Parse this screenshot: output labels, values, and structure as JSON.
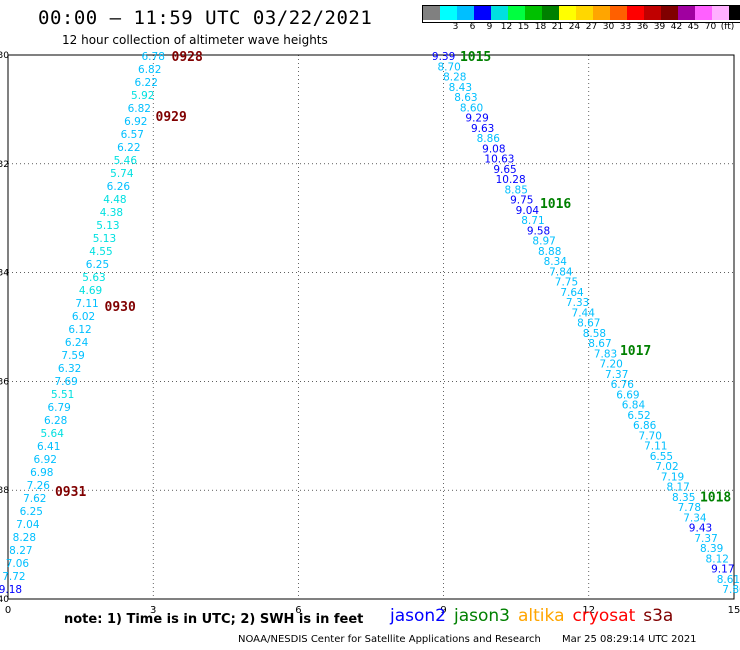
{
  "header": {
    "title": "00:00 – 11:59 UTC 03/22/2021",
    "subtitle": "12 hour collection of altimeter wave heights"
  },
  "color_scale": {
    "colors": [
      "#808080",
      "#00ffff",
      "#00bfff",
      "#0000ff",
      "#00e0e0",
      "#00ff40",
      "#00c000",
      "#008000",
      "#ffff00",
      "#ffd700",
      "#ffa500",
      "#ff6000",
      "#ff0000",
      "#c00000",
      "#800000",
      "#a000a0",
      "#ff60ff",
      "#ffb0ff",
      "#000000"
    ],
    "labels": [
      "",
      "3",
      "6",
      "9",
      "12",
      "15",
      "18",
      "21",
      "24",
      "27",
      "30",
      "33",
      "36",
      "39",
      "42",
      "45",
      "70",
      "(ft)",
      ""
    ]
  },
  "chart_data": {
    "type": "scatter",
    "xlim": [
      0,
      15
    ],
    "ylim": [
      -40,
      -30
    ],
    "x_ticks": [
      "0",
      "3",
      "6",
      "9",
      "12",
      "15"
    ],
    "y_ticks": [
      "-30",
      "-32",
      "-34",
      "-36",
      "-38",
      "-40"
    ],
    "grid": true,
    "tracks": [
      {
        "times": [
          {
            "label": "0928",
            "lat": -30.0
          },
          {
            "label": "0929",
            "lat": -31.1
          },
          {
            "label": "0930",
            "lat": -34.6
          },
          {
            "label": "0931",
            "lat": -38.0
          }
        ],
        "lon_start": 3.0,
        "lat_start": -30.0,
        "lon_end": 0.05,
        "lat_end": -39.8,
        "values": [
          {
            "v": "6.78",
            "c": "#00bfff"
          },
          {
            "v": "6.82",
            "c": "#00bfff"
          },
          {
            "v": "6.22",
            "c": "#00bfff"
          },
          {
            "v": "5.92",
            "c": "#00e0e0"
          },
          {
            "v": "6.82",
            "c": "#00bfff"
          },
          {
            "v": "6.92",
            "c": "#00bfff"
          },
          {
            "v": "6.57",
            "c": "#00bfff"
          },
          {
            "v": "6.22",
            "c": "#00bfff"
          },
          {
            "v": "5.46",
            "c": "#00e0e0"
          },
          {
            "v": "5.74",
            "c": "#00e0e0"
          },
          {
            "v": "6.26",
            "c": "#00bfff"
          },
          {
            "v": "4.48",
            "c": "#00e0e0"
          },
          {
            "v": "4.38",
            "c": "#00e0e0"
          },
          {
            "v": "5.13",
            "c": "#00e0e0"
          },
          {
            "v": "5.13",
            "c": "#00e0e0"
          },
          {
            "v": "4.55",
            "c": "#00e0e0"
          },
          {
            "v": "6.25",
            "c": "#00bfff"
          },
          {
            "v": "5.63",
            "c": "#00e0e0"
          },
          {
            "v": "4.69",
            "c": "#00e0e0"
          },
          {
            "v": "7.11",
            "c": "#00bfff"
          },
          {
            "v": "6.02",
            "c": "#00bfff"
          },
          {
            "v": "6.12",
            "c": "#00bfff"
          },
          {
            "v": "6.24",
            "c": "#00bfff"
          },
          {
            "v": "7.59",
            "c": "#00bfff"
          },
          {
            "v": "6.32",
            "c": "#00bfff"
          },
          {
            "v": "7.69",
            "c": "#00bfff"
          },
          {
            "v": "5.51",
            "c": "#00e0e0"
          },
          {
            "v": "6.79",
            "c": "#00bfff"
          },
          {
            "v": "6.28",
            "c": "#00bfff"
          },
          {
            "v": "5.64",
            "c": "#00e0e0"
          },
          {
            "v": "6.41",
            "c": "#00bfff"
          },
          {
            "v": "6.92",
            "c": "#00bfff"
          },
          {
            "v": "6.98",
            "c": "#00bfff"
          },
          {
            "v": "7.26",
            "c": "#00bfff"
          },
          {
            "v": "7.62",
            "c": "#00bfff"
          },
          {
            "v": "6.25",
            "c": "#00bfff"
          },
          {
            "v": "7.04",
            "c": "#00bfff"
          },
          {
            "v": "8.28",
            "c": "#00bfff"
          },
          {
            "v": "8.27",
            "c": "#00bfff"
          },
          {
            "v": "7.06",
            "c": "#00bfff"
          },
          {
            "v": "7.72",
            "c": "#00bfff"
          },
          {
            "v": "9.18",
            "c": "#0000ff"
          }
        ]
      },
      {
        "times": [
          {
            "label": "1015",
            "lat": -30.0
          },
          {
            "label": "1016",
            "lat": -32.7
          },
          {
            "label": "1017",
            "lat": -35.4
          },
          {
            "label": "1018",
            "lat": -38.1
          }
        ],
        "lon_start": 9.0,
        "lat_start": -30.0,
        "lon_end": 15.0,
        "lat_end": -39.8,
        "values": [
          {
            "v": "9.39",
            "c": "#0000ff"
          },
          {
            "v": "8.70",
            "c": "#00bfff"
          },
          {
            "v": "8.28",
            "c": "#00bfff"
          },
          {
            "v": "8.43",
            "c": "#00bfff"
          },
          {
            "v": "8.63",
            "c": "#00bfff"
          },
          {
            "v": "8.60",
            "c": "#00bfff"
          },
          {
            "v": "9.29",
            "c": "#0000ff"
          },
          {
            "v": "9.63",
            "c": "#0000ff"
          },
          {
            "v": "8.86",
            "c": "#00bfff"
          },
          {
            "v": "9.08",
            "c": "#0000ff"
          },
          {
            "v": "10.63",
            "c": "#0000ff"
          },
          {
            "v": "9.65",
            "c": "#0000ff"
          },
          {
            "v": "10.28",
            "c": "#0000ff"
          },
          {
            "v": "8.85",
            "c": "#00bfff"
          },
          {
            "v": "9.75",
            "c": "#0000ff"
          },
          {
            "v": "9.04",
            "c": "#0000ff"
          },
          {
            "v": "8.71",
            "c": "#00bfff"
          },
          {
            "v": "9.58",
            "c": "#0000ff"
          },
          {
            "v": "8.97",
            "c": "#00bfff"
          },
          {
            "v": "8.88",
            "c": "#00bfff"
          },
          {
            "v": "8.34",
            "c": "#00bfff"
          },
          {
            "v": "7.84",
            "c": "#00bfff"
          },
          {
            "v": "7.75",
            "c": "#00bfff"
          },
          {
            "v": "7.64",
            "c": "#00bfff"
          },
          {
            "v": "7.33",
            "c": "#00bfff"
          },
          {
            "v": "7.44",
            "c": "#00bfff"
          },
          {
            "v": "8.67",
            "c": "#00bfff"
          },
          {
            "v": "8.58",
            "c": "#00bfff"
          },
          {
            "v": "8.67",
            "c": "#00bfff"
          },
          {
            "v": "7.83",
            "c": "#00bfff"
          },
          {
            "v": "7.20",
            "c": "#00bfff"
          },
          {
            "v": "7.37",
            "c": "#00bfff"
          },
          {
            "v": "6.76",
            "c": "#00bfff"
          },
          {
            "v": "6.69",
            "c": "#00bfff"
          },
          {
            "v": "6.84",
            "c": "#00bfff"
          },
          {
            "v": "6.52",
            "c": "#00bfff"
          },
          {
            "v": "6.86",
            "c": "#00bfff"
          },
          {
            "v": "7.70",
            "c": "#00bfff"
          },
          {
            "v": "7.11",
            "c": "#00bfff"
          },
          {
            "v": "6.55",
            "c": "#00bfff"
          },
          {
            "v": "7.02",
            "c": "#00bfff"
          },
          {
            "v": "7.19",
            "c": "#00bfff"
          },
          {
            "v": "8.17",
            "c": "#00bfff"
          },
          {
            "v": "8.35",
            "c": "#00bfff"
          },
          {
            "v": "7.78",
            "c": "#00bfff"
          },
          {
            "v": "7.34",
            "c": "#00bfff"
          },
          {
            "v": "9.43",
            "c": "#0000ff"
          },
          {
            "v": "7.37",
            "c": "#00bfff"
          },
          {
            "v": "8.39",
            "c": "#00bfff"
          },
          {
            "v": "8.12",
            "c": "#00bfff"
          },
          {
            "v": "9.17",
            "c": "#0000ff"
          },
          {
            "v": "8.61",
            "c": "#00bfff"
          },
          {
            "v": "7.86",
            "c": "#00bfff"
          }
        ]
      }
    ],
    "time_label_colors": [
      "#800000",
      "#008000"
    ]
  },
  "note": "note: 1) Time is in UTC; 2) SWH is in feet",
  "legend": [
    {
      "name": "jason2",
      "color": "#0000ff"
    },
    {
      "name": "jason3",
      "color": "#008000"
    },
    {
      "name": "altika",
      "color": "#ffa500"
    },
    {
      "name": "cryosat",
      "color": "#ff0000"
    },
    {
      "name": "s3a",
      "color": "#800000"
    }
  ],
  "footer": {
    "credit": "NOAA/NESDIS Center for Satellite Applications and Research",
    "timestamp": "Mar 25 08:29:14 UTC 2021"
  }
}
